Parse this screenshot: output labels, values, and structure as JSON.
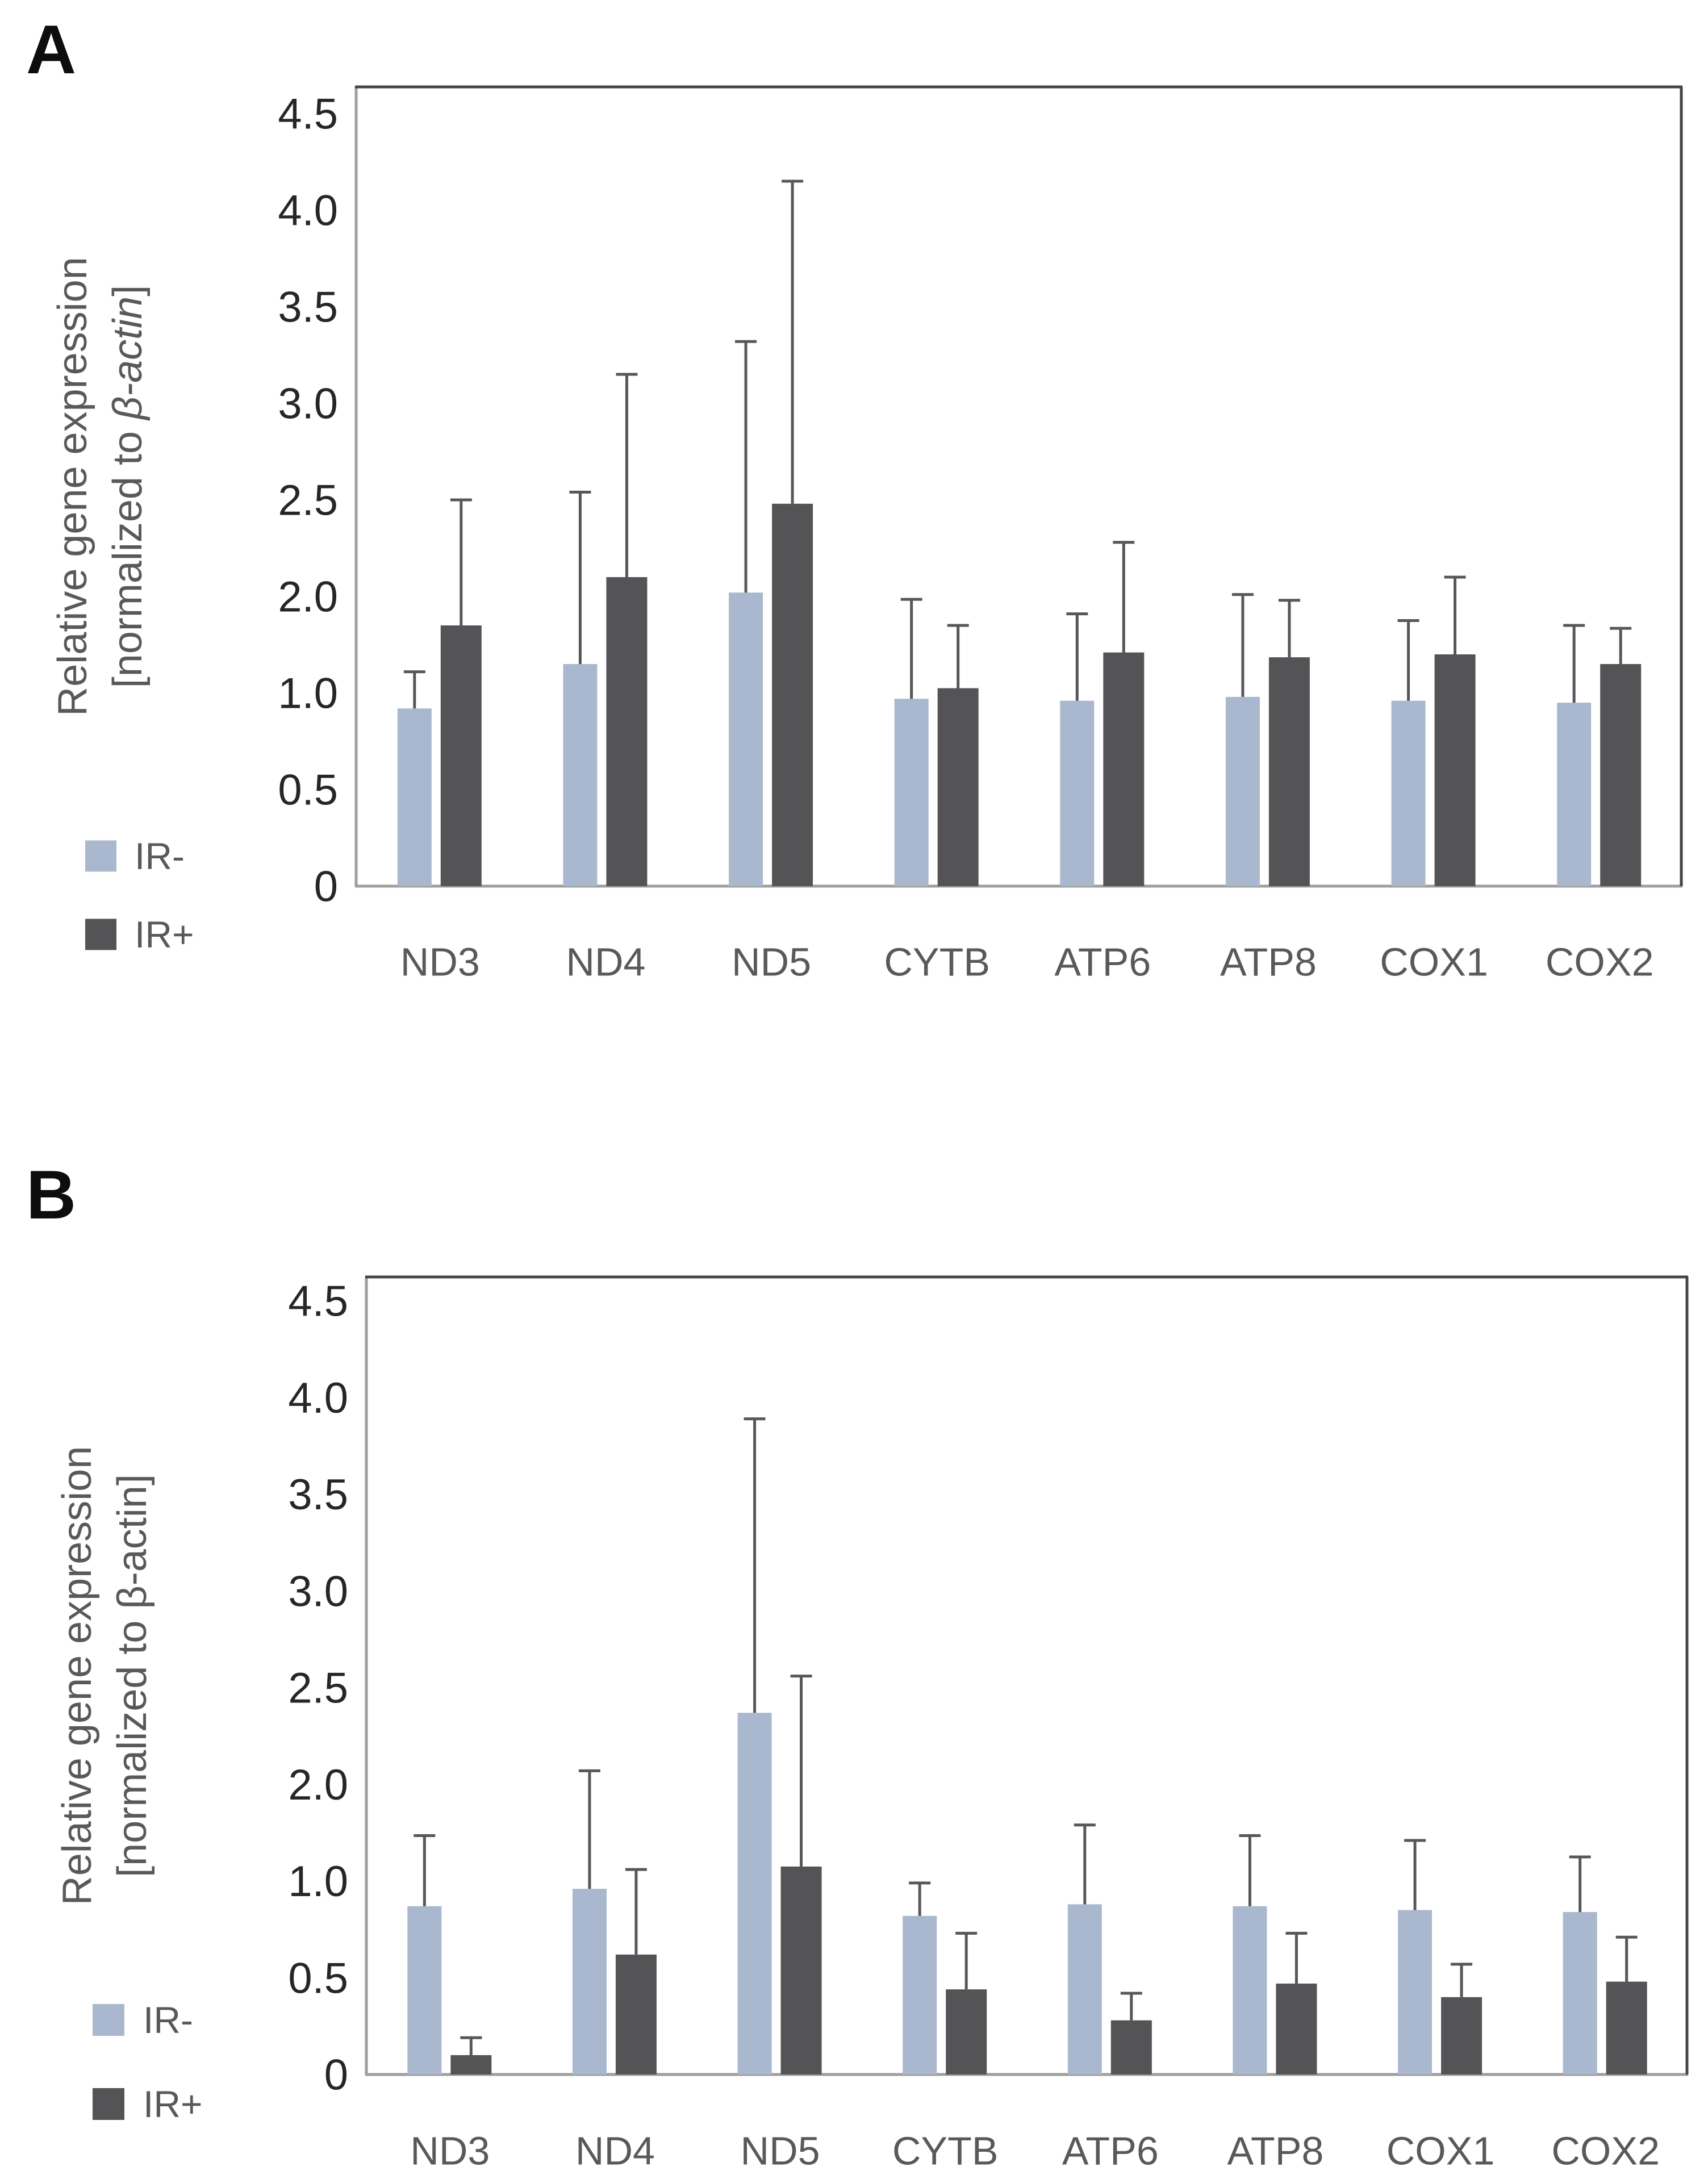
{
  "figure": {
    "background": "#ffffff",
    "panel_letters": [
      "A",
      "B"
    ]
  },
  "colors": {
    "bar_light": "#a9b8ce",
    "bar_dark": "#545456",
    "error_bar": "#55575a",
    "axis_gray": "#9e9e9e",
    "frame_dark": "#454545",
    "tick_text": "#262626",
    "label_text": "#595959"
  },
  "chart_data": [
    {
      "type": "bar",
      "panel_label": "A",
      "ylabel_line1": "Relative gene expression",
      "ylabel_line2_prefix": "[normalized to ",
      "ylabel_line2_gene": "β-actin",
      "ylabel_line2_suffix": "]",
      "ylabel_gene_italic": true,
      "categories": [
        "ND3",
        "ND4",
        "ND5",
        "CYTB",
        "ATP6",
        "ATP8",
        "COX1",
        "COX2"
      ],
      "y_tick_labels": [
        "4.5",
        "4.0",
        "3.5",
        "3.0",
        "2.5",
        "2.0",
        "1.0",
        "0.5",
        "0"
      ],
      "y_tick_values": [
        4.5,
        4.0,
        3.5,
        3.0,
        2.5,
        2.0,
        1.0,
        0.5,
        0
      ],
      "ylim": [
        0,
        4.5
      ],
      "grid": false,
      "legend_position": "bottom-left",
      "error_bars": "upper-sd",
      "series": [
        {
          "name": "IR-",
          "color": "#a9b8ce",
          "values": [
            0.92,
            1.3,
            2.02,
            0.97,
            0.96,
            0.98,
            0.96,
            0.95
          ],
          "sd": [
            0.3,
            1.24,
            1.3,
            1.0,
            0.86,
            1.03,
            0.79,
            0.75
          ]
        },
        {
          "name": "IR+",
          "color": "#545456",
          "values": [
            1.7,
            2.1,
            2.48,
            1.05,
            1.42,
            1.37,
            1.4,
            1.3
          ],
          "sd": [
            0.8,
            1.05,
            1.67,
            0.65,
            0.86,
            0.59,
            0.7,
            0.37
          ]
        }
      ]
    },
    {
      "type": "bar",
      "panel_label": "B",
      "ylabel_line1": "Relative gene expression",
      "ylabel_line2_prefix": "[normalized to ",
      "ylabel_line2_gene": "β-actin",
      "ylabel_line2_suffix": "]",
      "ylabel_gene_italic": false,
      "categories": [
        "ND3",
        "ND4",
        "ND5",
        "CYTB",
        "ATP6",
        "ATP8",
        "COX1",
        "COX2"
      ],
      "y_tick_labels": [
        "4.5",
        "4.0",
        "3.5",
        "3.0",
        "2.5",
        "2.0",
        "1.0",
        "0.5",
        "0"
      ],
      "y_tick_values": [
        4.5,
        4.0,
        3.5,
        3.0,
        2.5,
        2.0,
        1.0,
        0.5,
        0
      ],
      "ylim": [
        0,
        4.5
      ],
      "grid": false,
      "legend_position": "bottom-left",
      "error_bars": "upper-sd",
      "series": [
        {
          "name": "IR-",
          "color": "#a9b8ce",
          "values": [
            0.87,
            0.96,
            2.37,
            0.82,
            0.88,
            0.87,
            0.85,
            0.84
          ],
          "sd": [
            0.6,
            1.11,
            1.52,
            0.17,
            0.7,
            0.6,
            0.57,
            0.41
          ]
        },
        {
          "name": "IR+",
          "color": "#545456",
          "values": [
            0.1,
            0.62,
            1.15,
            0.44,
            0.28,
            0.47,
            0.4,
            0.48
          ],
          "sd": [
            0.09,
            0.5,
            1.41,
            0.29,
            0.14,
            0.26,
            0.17,
            0.23
          ]
        }
      ]
    }
  ]
}
